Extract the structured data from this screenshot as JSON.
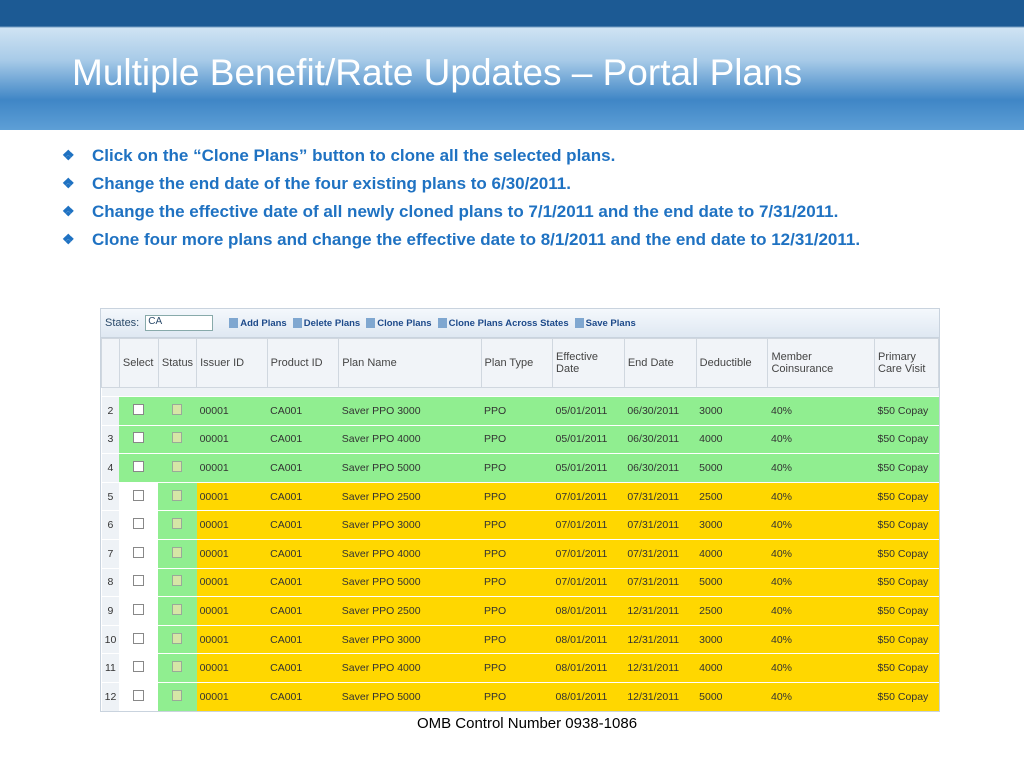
{
  "title": "Multiple Benefit/Rate Updates – Portal Plans",
  "bullets": [
    "Click on the “Clone Plans” button to clone all the selected plans.",
    "Change the end date of the four existing plans to 6/30/2011.",
    "Change the effective date of all newly cloned plans to 7/1/2011 and the end date to 7/31/2011.",
    "Clone four more plans and change the effective date to 8/1/2011 and the end date to 12/31/2011."
  ],
  "toolbar": {
    "states_label": "States:",
    "state_value": "CA",
    "buttons": [
      "Add Plans",
      "Delete Plans",
      "Clone Plans",
      "Clone Plans Across States",
      "Save Plans"
    ]
  },
  "table": {
    "headers": [
      "Select",
      "Status",
      "Issuer ID",
      "Product ID",
      "Plan Name",
      "Plan Type",
      "Effective Date",
      "End Date",
      "Deductible",
      "Member Coinsurance",
      "Primary Care Visit"
    ],
    "rows": [
      {
        "num": "2",
        "color": "#90ee90",
        "cells": [
          "00001",
          "CA001",
          "Saver PPO 3000",
          "PPO",
          "05/01/2011",
          "06/30/2011",
          "3000",
          "40%",
          "$50 Copay"
        ]
      },
      {
        "num": "3",
        "color": "#90ee90",
        "cells": [
          "00001",
          "CA001",
          "Saver PPO 4000",
          "PPO",
          "05/01/2011",
          "06/30/2011",
          "4000",
          "40%",
          "$50 Copay"
        ]
      },
      {
        "num": "4",
        "color": "#90ee90",
        "cells": [
          "00001",
          "CA001",
          "Saver PPO 5000",
          "PPO",
          "05/01/2011",
          "06/30/2011",
          "5000",
          "40%",
          "$50 Copay"
        ]
      },
      {
        "num": "5",
        "color": "#ffd700",
        "cells": [
          "00001",
          "CA001",
          "Saver PPO 2500",
          "PPO",
          "07/01/2011",
          "07/31/2011",
          "2500",
          "40%",
          "$50 Copay"
        ]
      },
      {
        "num": "6",
        "color": "#ffd700",
        "cells": [
          "00001",
          "CA001",
          "Saver PPO 3000",
          "PPO",
          "07/01/2011",
          "07/31/2011",
          "3000",
          "40%",
          "$50 Copay"
        ]
      },
      {
        "num": "7",
        "color": "#ffd700",
        "cells": [
          "00001",
          "CA001",
          "Saver PPO 4000",
          "PPO",
          "07/01/2011",
          "07/31/2011",
          "4000",
          "40%",
          "$50 Copay"
        ]
      },
      {
        "num": "8",
        "color": "#ffd700",
        "cells": [
          "00001",
          "CA001",
          "Saver PPO 5000",
          "PPO",
          "07/01/2011",
          "07/31/2011",
          "5000",
          "40%",
          "$50 Copay"
        ]
      },
      {
        "num": "9",
        "color": "#ffd700",
        "cells": [
          "00001",
          "CA001",
          "Saver PPO 2500",
          "PPO",
          "08/01/2011",
          "12/31/2011",
          "2500",
          "40%",
          "$50 Copay"
        ]
      },
      {
        "num": "10",
        "color": "#ffd700",
        "cells": [
          "00001",
          "CA001",
          "Saver PPO 3000",
          "PPO",
          "08/01/2011",
          "12/31/2011",
          "3000",
          "40%",
          "$50 Copay"
        ]
      },
      {
        "num": "11",
        "color": "#ffd700",
        "cells": [
          "00001",
          "CA001",
          "Saver PPO 4000",
          "PPO",
          "08/01/2011",
          "12/31/2011",
          "4000",
          "40%",
          "$50 Copay"
        ]
      },
      {
        "num": "12",
        "color": "#ffd700",
        "cells": [
          "00001",
          "CA001",
          "Saver PPO 5000",
          "PPO",
          "08/01/2011",
          "12/31/2011",
          "5000",
          "40%",
          "$50 Copay"
        ]
      }
    ]
  },
  "footer": "OMB Control Number 0938-1086"
}
